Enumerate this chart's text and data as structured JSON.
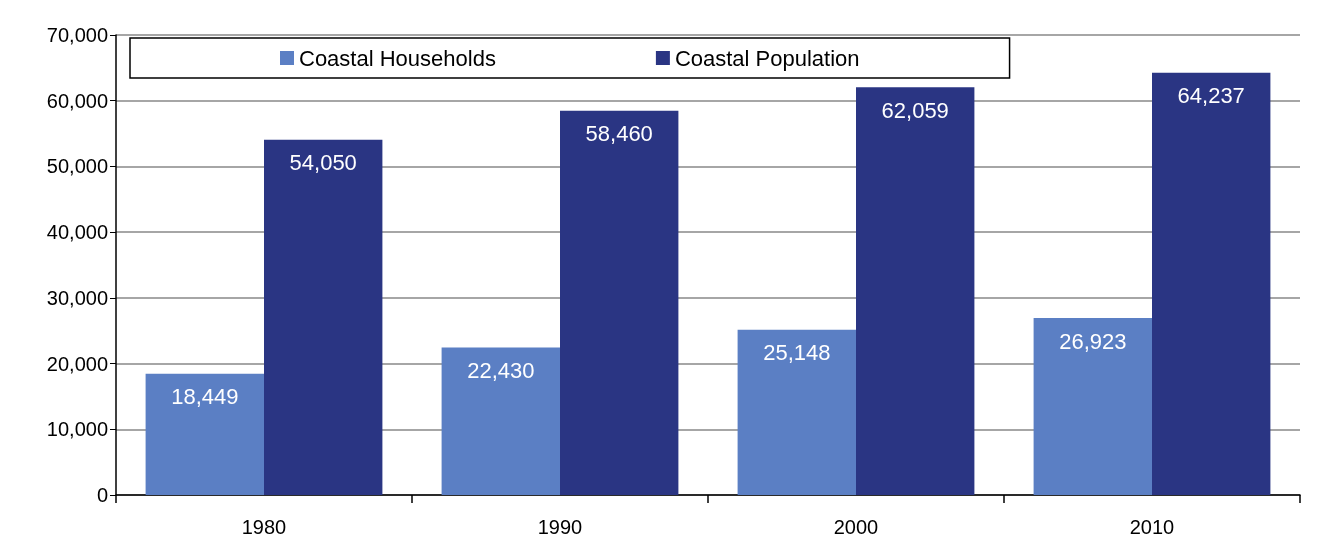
{
  "chart_data": {
    "type": "bar",
    "categories": [
      "1980",
      "1990",
      "2000",
      "2010"
    ],
    "series": [
      {
        "name": "Coastal Households",
        "color": "#5b7fc4",
        "values": [
          18449,
          22430,
          25148,
          26923
        ],
        "value_labels": [
          "18,449",
          "22,430",
          "25,148",
          "26,923"
        ]
      },
      {
        "name": "Coastal Population",
        "color": "#2a3583",
        "values": [
          54050,
          58460,
          62059,
          64237
        ],
        "value_labels": [
          "54,050",
          "58,460",
          "62,059",
          "64,237"
        ]
      }
    ],
    "ylim": [
      0,
      70000
    ],
    "yticks": [
      {
        "value": 0,
        "label": "0"
      },
      {
        "value": 10000,
        "label": "10,000"
      },
      {
        "value": 20000,
        "label": "20,000"
      },
      {
        "value": 30000,
        "label": "30,000"
      },
      {
        "value": 40000,
        "label": "40,000"
      },
      {
        "value": 50000,
        "label": "50,000"
      },
      {
        "value": 60000,
        "label": "60,000"
      },
      {
        "value": 70000,
        "label": "70,000"
      }
    ],
    "grid": "y",
    "legend": "top"
  }
}
